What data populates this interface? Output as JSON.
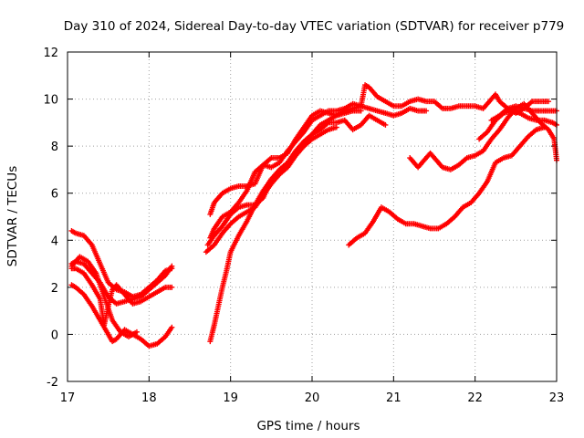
{
  "chart_data": {
    "type": "scatter",
    "title": "Day 310 of 2024, Sidereal Day-to-day VTEC variation (SDTVAR) for receiver p779",
    "xlabel": "GPS time / hours",
    "ylabel": "SDTVAR / TECUs",
    "xlim": [
      17,
      23
    ],
    "ylim": [
      -2,
      12
    ],
    "xticks": [
      17,
      18,
      19,
      20,
      21,
      22,
      23
    ],
    "yticks": [
      -2,
      0,
      2,
      4,
      6,
      8,
      10,
      12
    ],
    "grid": true,
    "marker": "+",
    "color": "#ff0000",
    "series": [
      {
        "name": "segment-1-top",
        "points": [
          [
            17.05,
            4.4
          ],
          [
            17.1,
            4.3
          ],
          [
            17.2,
            4.2
          ],
          [
            17.3,
            3.8
          ],
          [
            17.4,
            3.0
          ],
          [
            17.5,
            2.2
          ],
          [
            17.6,
            1.9
          ],
          [
            17.7,
            1.8
          ],
          [
            17.8,
            1.6
          ],
          [
            17.9,
            1.7
          ],
          [
            18.0,
            2.0
          ],
          [
            18.1,
            2.3
          ],
          [
            18.2,
            2.7
          ],
          [
            18.28,
            2.8
          ]
        ]
      },
      {
        "name": "segment-1-b",
        "points": [
          [
            17.05,
            3.0
          ],
          [
            17.1,
            3.1
          ],
          [
            17.2,
            3.0
          ],
          [
            17.3,
            2.6
          ],
          [
            17.4,
            2.2
          ],
          [
            17.5,
            1.6
          ],
          [
            17.6,
            1.3
          ],
          [
            17.7,
            1.4
          ],
          [
            17.8,
            1.5
          ],
          [
            17.9,
            1.6
          ],
          [
            18.0,
            1.9
          ],
          [
            18.1,
            2.2
          ],
          [
            18.2,
            2.5
          ],
          [
            18.28,
            2.9
          ]
        ]
      },
      {
        "name": "segment-1-c",
        "points": [
          [
            17.05,
            2.8
          ],
          [
            17.1,
            2.8
          ],
          [
            17.2,
            2.6
          ],
          [
            17.3,
            2.1
          ],
          [
            17.4,
            1.5
          ],
          [
            17.45,
            0.4
          ],
          [
            17.5,
            1.2
          ],
          [
            17.55,
            1.9
          ],
          [
            17.6,
            2.1
          ],
          [
            17.7,
            1.7
          ],
          [
            17.8,
            1.3
          ],
          [
            17.9,
            1.4
          ],
          [
            18.0,
            1.6
          ],
          [
            18.1,
            1.8
          ],
          [
            18.2,
            2.0
          ],
          [
            18.28,
            2.0
          ]
        ]
      },
      {
        "name": "segment-1-d",
        "points": [
          [
            17.05,
            2.1
          ],
          [
            17.1,
            2.0
          ],
          [
            17.2,
            1.7
          ],
          [
            17.3,
            1.2
          ],
          [
            17.4,
            0.6
          ],
          [
            17.5,
            0.0
          ],
          [
            17.55,
            -0.3
          ],
          [
            17.6,
            -0.2
          ],
          [
            17.7,
            0.2
          ],
          [
            17.8,
            0.0
          ],
          [
            17.9,
            -0.2
          ],
          [
            18.0,
            -0.5
          ],
          [
            18.1,
            -0.4
          ],
          [
            18.2,
            -0.1
          ],
          [
            18.28,
            0.3
          ]
        ]
      },
      {
        "name": "segment-1-e",
        "points": [
          [
            17.05,
            2.9
          ],
          [
            17.15,
            3.3
          ],
          [
            17.25,
            3.1
          ],
          [
            17.35,
            2.6
          ],
          [
            17.45,
            1.6
          ],
          [
            17.55,
            0.6
          ],
          [
            17.65,
            0.1
          ],
          [
            17.75,
            -0.1
          ],
          [
            17.85,
            0.1
          ]
        ]
      },
      {
        "name": "segment-2-a",
        "points": [
          [
            18.75,
            5.1
          ],
          [
            18.8,
            5.6
          ],
          [
            18.9,
            6.0
          ],
          [
            19.0,
            6.2
          ],
          [
            19.1,
            6.3
          ],
          [
            19.2,
            6.3
          ],
          [
            19.3,
            6.4
          ],
          [
            19.4,
            7.2
          ],
          [
            19.5,
            7.5
          ],
          [
            19.6,
            7.5
          ],
          [
            19.7,
            7.7
          ],
          [
            19.8,
            8.3
          ],
          [
            19.9,
            8.8
          ],
          [
            20.0,
            9.3
          ],
          [
            20.1,
            9.5
          ],
          [
            20.2,
            9.4
          ],
          [
            20.3,
            9.3
          ],
          [
            20.4,
            9.5
          ],
          [
            20.5,
            9.6
          ],
          [
            20.6,
            9.7
          ],
          [
            20.65,
            10.6
          ],
          [
            20.7,
            10.5
          ],
          [
            20.8,
            10.1
          ],
          [
            20.9,
            9.9
          ],
          [
            21.0,
            9.7
          ],
          [
            21.1,
            9.7
          ],
          [
            21.2,
            9.9
          ],
          [
            21.3,
            10.0
          ],
          [
            21.4,
            9.9
          ],
          [
            21.5,
            9.9
          ],
          [
            21.6,
            9.6
          ],
          [
            21.7,
            9.6
          ],
          [
            21.8,
            9.7
          ],
          [
            21.9,
            9.7
          ],
          [
            22.0,
            9.7
          ],
          [
            22.1,
            9.6
          ],
          [
            22.2,
            10.0
          ],
          [
            22.25,
            10.2
          ],
          [
            22.3,
            9.9
          ],
          [
            22.4,
            9.6
          ],
          [
            22.5,
            9.4
          ],
          [
            22.6,
            9.6
          ],
          [
            22.7,
            9.9
          ],
          [
            22.8,
            9.9
          ],
          [
            22.9,
            9.9
          ]
        ]
      },
      {
        "name": "segment-2-b",
        "points": [
          [
            18.75,
            4.1
          ],
          [
            18.8,
            4.5
          ],
          [
            18.9,
            5.0
          ],
          [
            19.0,
            5.2
          ],
          [
            19.1,
            5.6
          ],
          [
            19.2,
            6.1
          ],
          [
            19.3,
            6.9
          ],
          [
            19.4,
            7.2
          ],
          [
            19.5,
            7.1
          ],
          [
            19.6,
            7.3
          ],
          [
            19.7,
            7.8
          ],
          [
            19.8,
            8.2
          ],
          [
            19.9,
            8.6
          ],
          [
            20.0,
            9.1
          ],
          [
            20.1,
            9.3
          ],
          [
            20.2,
            9.5
          ],
          [
            20.3,
            9.5
          ],
          [
            20.4,
            9.6
          ],
          [
            20.5,
            9.8
          ],
          [
            20.6,
            9.7
          ],
          [
            20.7,
            9.6
          ],
          [
            20.8,
            9.5
          ],
          [
            20.9,
            9.4
          ],
          [
            21.0,
            9.3
          ],
          [
            21.1,
            9.4
          ],
          [
            21.2,
            9.6
          ],
          [
            21.3,
            9.5
          ],
          [
            21.4,
            9.5
          ]
        ]
      },
      {
        "name": "segment-2-c",
        "points": [
          [
            18.72,
            3.8
          ],
          [
            18.8,
            4.2
          ],
          [
            18.9,
            4.6
          ],
          [
            19.0,
            5.1
          ],
          [
            19.1,
            5.4
          ],
          [
            19.2,
            5.5
          ],
          [
            19.3,
            5.5
          ],
          [
            19.4,
            5.8
          ],
          [
            19.5,
            6.6
          ],
          [
            19.6,
            7.0
          ],
          [
            19.7,
            7.3
          ],
          [
            19.8,
            7.8
          ],
          [
            19.9,
            8.2
          ],
          [
            20.0,
            8.5
          ],
          [
            20.1,
            8.7
          ],
          [
            20.2,
            9.0
          ],
          [
            20.3,
            9.0
          ],
          [
            20.4,
            9.1
          ],
          [
            20.5,
            8.7
          ],
          [
            20.6,
            8.9
          ],
          [
            20.7,
            9.3
          ],
          [
            20.8,
            9.1
          ],
          [
            20.9,
            8.9
          ]
        ]
      },
      {
        "name": "segment-2-d",
        "points": [
          [
            18.7,
            3.5
          ],
          [
            18.8,
            3.8
          ],
          [
            18.9,
            4.3
          ],
          [
            19.0,
            4.7
          ],
          [
            19.1,
            5.0
          ],
          [
            19.2,
            5.2
          ],
          [
            19.3,
            5.4
          ],
          [
            19.4,
            5.9
          ],
          [
            19.5,
            6.4
          ],
          [
            19.6,
            6.8
          ],
          [
            19.7,
            7.1
          ],
          [
            19.8,
            7.6
          ],
          [
            19.9,
            8.0
          ],
          [
            20.0,
            8.3
          ],
          [
            20.1,
            8.5
          ],
          [
            20.2,
            8.7
          ],
          [
            20.3,
            8.8
          ]
        ]
      },
      {
        "name": "segment-2-e",
        "points": [
          [
            18.75,
            -0.3
          ],
          [
            18.8,
            0.4
          ],
          [
            18.85,
            1.2
          ],
          [
            18.9,
            2.0
          ],
          [
            18.95,
            2.7
          ],
          [
            19.0,
            3.5
          ],
          [
            19.1,
            4.2
          ],
          [
            19.2,
            4.8
          ],
          [
            19.3,
            5.5
          ],
          [
            19.4,
            6.1
          ],
          [
            19.5,
            6.6
          ],
          [
            19.6,
            6.9
          ],
          [
            19.7,
            7.3
          ],
          [
            19.8,
            7.6
          ],
          [
            19.9,
            8.1
          ],
          [
            20.0,
            8.5
          ],
          [
            20.1,
            8.9
          ],
          [
            20.2,
            9.1
          ],
          [
            20.3,
            9.3
          ],
          [
            20.4,
            9.4
          ],
          [
            20.5,
            9.5
          ],
          [
            20.6,
            9.5
          ]
        ]
      },
      {
        "name": "segment-3-a",
        "points": [
          [
            21.2,
            7.5
          ],
          [
            21.3,
            7.1
          ],
          [
            21.4,
            7.5
          ],
          [
            21.45,
            7.7
          ],
          [
            21.5,
            7.5
          ],
          [
            21.6,
            7.1
          ],
          [
            21.7,
            7.0
          ],
          [
            21.8,
            7.2
          ],
          [
            21.9,
            7.5
          ],
          [
            22.0,
            7.6
          ],
          [
            22.1,
            7.8
          ],
          [
            22.2,
            8.3
          ],
          [
            22.3,
            8.7
          ],
          [
            22.4,
            9.2
          ],
          [
            22.5,
            9.6
          ],
          [
            22.6,
            9.8
          ],
          [
            22.7,
            9.4
          ],
          [
            22.8,
            9.0
          ],
          [
            22.9,
            8.7
          ],
          [
            22.97,
            8.3
          ],
          [
            23.0,
            7.4
          ]
        ]
      },
      {
        "name": "segment-3-b",
        "points": [
          [
            22.05,
            8.3
          ],
          [
            22.15,
            8.6
          ],
          [
            22.25,
            9.1
          ],
          [
            22.35,
            9.4
          ],
          [
            22.45,
            9.5
          ],
          [
            22.55,
            9.4
          ],
          [
            22.65,
            9.2
          ],
          [
            22.75,
            9.1
          ],
          [
            22.85,
            9.1
          ],
          [
            22.95,
            9.0
          ],
          [
            23.0,
            8.9
          ]
        ]
      },
      {
        "name": "segment-3-c",
        "points": [
          [
            22.2,
            9.1
          ],
          [
            22.3,
            9.3
          ],
          [
            22.4,
            9.6
          ],
          [
            22.5,
            9.7
          ],
          [
            22.6,
            9.6
          ],
          [
            22.7,
            9.5
          ],
          [
            22.8,
            9.5
          ],
          [
            22.9,
            9.5
          ],
          [
            23.0,
            9.5
          ]
        ]
      },
      {
        "name": "segment-4",
        "points": [
          [
            20.45,
            3.8
          ],
          [
            20.55,
            4.1
          ],
          [
            20.65,
            4.3
          ],
          [
            20.75,
            4.8
          ],
          [
            20.85,
            5.4
          ],
          [
            20.95,
            5.2
          ],
          [
            21.05,
            4.9
          ],
          [
            21.15,
            4.7
          ],
          [
            21.25,
            4.7
          ],
          [
            21.35,
            4.6
          ],
          [
            21.45,
            4.5
          ],
          [
            21.55,
            4.5
          ],
          [
            21.65,
            4.7
          ],
          [
            21.75,
            5.0
          ],
          [
            21.85,
            5.4
          ],
          [
            21.95,
            5.6
          ],
          [
            22.05,
            6.0
          ],
          [
            22.15,
            6.5
          ],
          [
            22.25,
            7.3
          ],
          [
            22.35,
            7.5
          ],
          [
            22.45,
            7.6
          ],
          [
            22.55,
            8.0
          ],
          [
            22.65,
            8.4
          ],
          [
            22.75,
            8.7
          ],
          [
            22.85,
            8.8
          ]
        ]
      }
    ]
  }
}
